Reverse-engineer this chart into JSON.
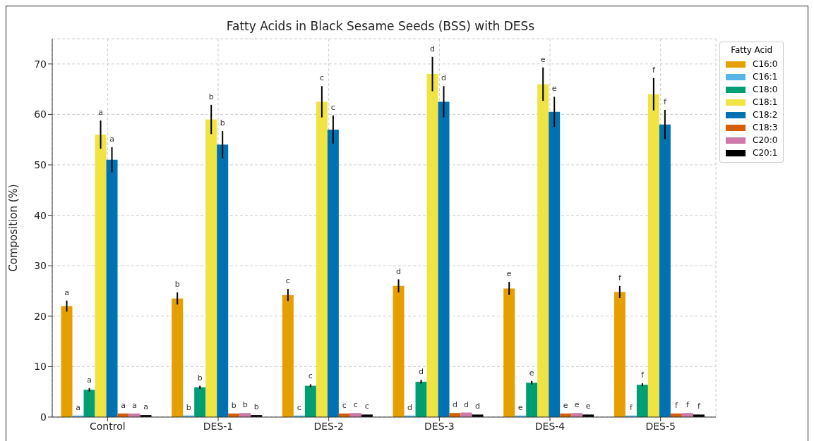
{
  "chart_data": {
    "type": "bar",
    "title": "Fatty Acids in Black Sesame Seeds (BSS) with DESs",
    "ylabel": "Composition (%)",
    "legend_title": "Fatty Acid",
    "categories": [
      "Control",
      "DES-1",
      "DES-2",
      "DES-3",
      "DES-4",
      "DES-5"
    ],
    "series": [
      {
        "name": "C16:0",
        "color": "#e69f00",
        "values": [
          22,
          23.5,
          24.2,
          26,
          25.5,
          24.8
        ],
        "errors": [
          1.1,
          1.2,
          1.2,
          1.3,
          1.3,
          1.2
        ],
        "value_labels": [
          "a",
          "b",
          "c",
          "d",
          "e",
          "f"
        ]
      },
      {
        "name": "C16:1",
        "color": "#56b4e9",
        "values": [
          0.3,
          0.3,
          0.3,
          0.3,
          0.3,
          0.3
        ],
        "value_labels": [
          "a",
          "b",
          "c",
          "d",
          "e",
          "f"
        ]
      },
      {
        "name": "C18:0",
        "color": "#009e73",
        "values": [
          5.4,
          5.9,
          6.2,
          7.0,
          6.8,
          6.4
        ],
        "errors": [
          0.3,
          0.3,
          0.3,
          0.35,
          0.35,
          0.3
        ],
        "value_labels": [
          "a",
          "b",
          "c",
          "d",
          "e",
          "f"
        ]
      },
      {
        "name": "C18:1",
        "color": "#f0e442",
        "values": [
          56,
          59,
          62.5,
          68,
          66,
          64
        ],
        "errors": [
          2.8,
          2.9,
          3.1,
          3.4,
          3.3,
          3.2
        ],
        "value_labels": [
          "a",
          "b",
          "c",
          "d",
          "e",
          "f"
        ]
      },
      {
        "name": "C18:2",
        "color": "#0072b2",
        "values": [
          51,
          54,
          57,
          62.5,
          60.5,
          58
        ],
        "errors": [
          2.5,
          2.7,
          2.8,
          3.1,
          3.0,
          2.9
        ],
        "value_labels": [
          "a",
          "b",
          "c",
          "d",
          "e",
          "f"
        ]
      },
      {
        "name": "C18:3",
        "color": "#d55e00",
        "values": [
          0.7,
          0.7,
          0.7,
          0.8,
          0.7,
          0.7
        ],
        "value_labels": [
          "a",
          "b",
          "c",
          "d",
          "e",
          "f"
        ]
      },
      {
        "name": "C20:0",
        "color": "#cc79a7",
        "values": [
          0.7,
          0.8,
          0.8,
          0.9,
          0.8,
          0.8
        ],
        "value_labels": [
          "a",
          "b",
          "c",
          "d",
          "e",
          "f"
        ]
      },
      {
        "name": "C20:1",
        "color": "#000000",
        "values": [
          0.4,
          0.4,
          0.5,
          0.5,
          0.5,
          0.5
        ],
        "value_labels": [
          "a",
          "b",
          "c",
          "d",
          "e",
          "f"
        ]
      }
    ],
    "ylim": [
      0,
      75
    ],
    "yticks": [
      0,
      10,
      20,
      30,
      40,
      50,
      60,
      70
    ],
    "grid": true,
    "legend": "top right"
  }
}
